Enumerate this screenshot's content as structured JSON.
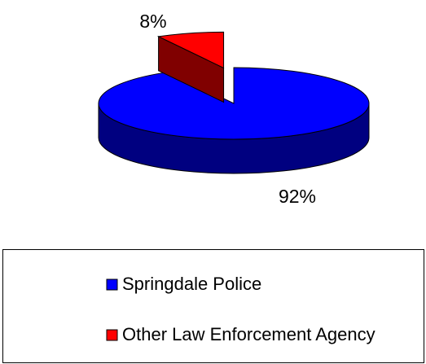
{
  "chart_data": {
    "type": "pie",
    "categories": [
      "Springdale Police",
      "Other Law Enforcement Agency"
    ],
    "values": [
      92,
      8
    ],
    "value_labels": [
      "92%",
      "8%"
    ],
    "colors": [
      "#0000ff",
      "#ff0000"
    ]
  }
}
